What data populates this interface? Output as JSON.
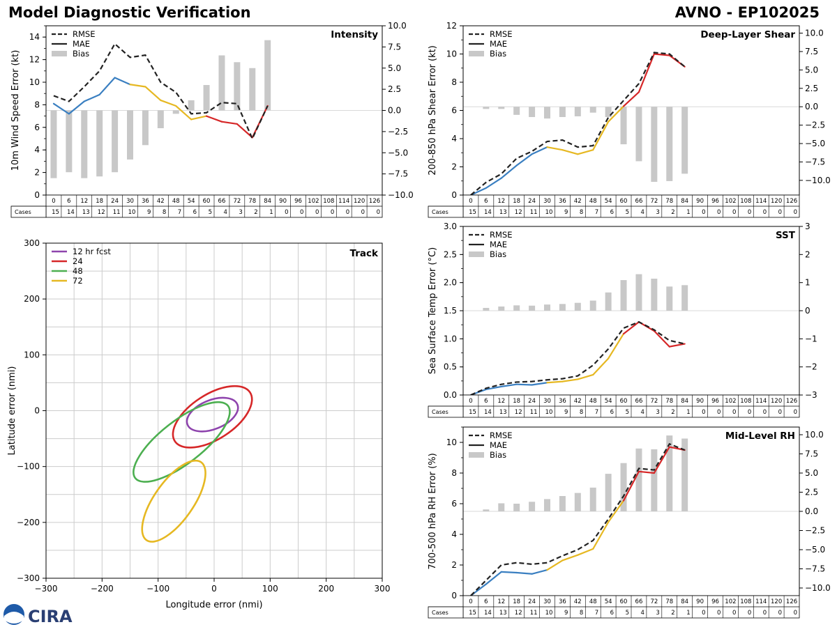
{
  "page": {
    "title": "Model Diagnostic Verification",
    "subtitle": "AVNO - EP102025",
    "logo_text": "CIRA"
  },
  "colors": {
    "rmse": "#222222",
    "early": "#3a7fc1",
    "mid": "#e6b822",
    "late": "#d62728",
    "bias": "#c8c8c8",
    "grid": "#cccccc"
  },
  "cases_label": "Cases",
  "chart_data": [
    {
      "id": "intensity",
      "type": "line",
      "title": "Intensity",
      "ylabel": "10m Wind Speed Error (kt)",
      "ylim": [
        0,
        15
      ],
      "yticks": [
        0,
        2,
        4,
        6,
        8,
        10,
        12,
        14
      ],
      "y2lim": [
        -10,
        10
      ],
      "y2ticks": [
        "−10.0",
        "−7.5",
        "−5.0",
        "−2.5",
        "0.0",
        "2.5",
        "5.0",
        "7.5",
        "10.0"
      ],
      "x": [
        0,
        6,
        12,
        18,
        24,
        30,
        36,
        42,
        48,
        54,
        60,
        66,
        72,
        78,
        84,
        90,
        96,
        102,
        108,
        114,
        120,
        126
      ],
      "cases": [
        15,
        14,
        13,
        12,
        11,
        10,
        9,
        8,
        7,
        6,
        5,
        4,
        3,
        2,
        1,
        0,
        0,
        0,
        0,
        0,
        0,
        0
      ],
      "rmse": [
        8.8,
        8.3,
        9.6,
        11.0,
        13.4,
        12.2,
        12.4,
        10.0,
        9.1,
        7.2,
        7.3,
        8.2,
        8.1,
        5.0,
        7.9
      ],
      "mae": [
        8.1,
        7.2,
        8.3,
        8.9,
        10.4,
        9.8,
        9.6,
        8.4,
        7.9,
        6.7,
        7.0,
        6.5,
        6.3,
        5.1,
        7.9
      ],
      "bias": [
        -8.0,
        -7.3,
        -8.0,
        -7.8,
        -7.3,
        -5.8,
        -4.1,
        -2.1,
        -0.4,
        1.2,
        3.0,
        6.5,
        5.7,
        5.0,
        8.3
      ],
      "legend": [
        "RMSE",
        "MAE",
        "Bias"
      ]
    },
    {
      "id": "shear",
      "type": "line",
      "title": "Deep-Layer Shear",
      "ylabel": "200-850 hPa Shear Error (kt)",
      "ylim": [
        0,
        12
      ],
      "yticks": [
        0,
        2,
        4,
        6,
        8,
        10,
        12
      ],
      "y2lim": [
        -12,
        11
      ],
      "y2ticks": [
        "−10.0",
        "−7.5",
        "−5.0",
        "−2.5",
        "0.0",
        "2.5",
        "5.0",
        "7.5",
        "10.0"
      ],
      "y2tickvals": [
        -10,
        -7.5,
        -5,
        -2.5,
        0,
        2.5,
        5,
        7.5,
        10
      ],
      "x": [
        0,
        6,
        12,
        18,
        24,
        30,
        36,
        42,
        48,
        54,
        60,
        66,
        72,
        78,
        84,
        90,
        96,
        102,
        108,
        114,
        120,
        126
      ],
      "cases": [
        15,
        14,
        13,
        12,
        11,
        10,
        9,
        8,
        7,
        6,
        5,
        4,
        3,
        2,
        1,
        0,
        0,
        0,
        0,
        0,
        0,
        0
      ],
      "rmse": [
        0.0,
        0.9,
        1.5,
        2.6,
        3.1,
        3.8,
        3.9,
        3.4,
        3.5,
        5.5,
        6.7,
        7.9,
        10.1,
        10.0,
        9.1
      ],
      "mae": [
        0.0,
        0.5,
        1.2,
        2.1,
        2.9,
        3.4,
        3.2,
        2.9,
        3.2,
        5.2,
        6.3,
        7.3,
        10.0,
        9.9,
        9.1
      ],
      "bias": [
        0.0,
        -0.3,
        -0.3,
        -1.1,
        -1.4,
        -1.6,
        -1.4,
        -1.3,
        -0.8,
        -1.4,
        -5.1,
        -7.4,
        -10.2,
        -10.1,
        -9.1
      ],
      "legend": [
        "RMSE",
        "MAE",
        "Bias"
      ]
    },
    {
      "id": "sst",
      "type": "line",
      "title": "SST",
      "ylabel": "Sea Surface Temp Error (°C)",
      "ylim": [
        0,
        3
      ],
      "yticks": [
        "0.0",
        "0.5",
        "1.0",
        "1.5",
        "2.0",
        "2.5",
        "3.0"
      ],
      "y2lim": [
        -3,
        3
      ],
      "y2ticks": [
        "−3",
        "−2",
        "−1",
        "0",
        "1",
        "2",
        "3"
      ],
      "x": [
        0,
        6,
        12,
        18,
        24,
        30,
        36,
        42,
        48,
        54,
        60,
        66,
        72,
        78,
        84,
        90,
        96,
        102,
        108,
        114,
        120,
        126
      ],
      "cases": [
        15,
        14,
        13,
        12,
        11,
        10,
        9,
        8,
        7,
        6,
        5,
        4,
        3,
        2,
        1,
        0,
        0,
        0,
        0,
        0,
        0,
        0
      ],
      "rmse": [
        0.0,
        0.12,
        0.19,
        0.23,
        0.24,
        0.27,
        0.29,
        0.34,
        0.53,
        0.82,
        1.19,
        1.3,
        1.16,
        0.97,
        0.91
      ],
      "mae": [
        0.0,
        0.1,
        0.15,
        0.19,
        0.18,
        0.22,
        0.24,
        0.28,
        0.36,
        0.65,
        1.09,
        1.3,
        1.14,
        0.86,
        0.91
      ],
      "bias": [
        0.0,
        0.1,
        0.15,
        0.19,
        0.18,
        0.22,
        0.24,
        0.28,
        0.36,
        0.65,
        1.09,
        1.3,
        1.14,
        0.86,
        0.91
      ],
      "legend": [
        "RMSE",
        "MAE",
        "Bias"
      ]
    },
    {
      "id": "rh",
      "type": "line",
      "title": "Mid-Level RH",
      "ylabel": "700-500 hPa RH Error (%)",
      "ylim": [
        0,
        11
      ],
      "yticks": [
        0,
        2,
        4,
        6,
        8,
        10
      ],
      "y2lim": [
        -11,
        11
      ],
      "y2ticks": [
        "−10.0",
        "−7.5",
        "−5.0",
        "−2.5",
        "0.0",
        "2.5",
        "5.0",
        "7.5",
        "10.0"
      ],
      "y2tickvals": [
        -10,
        -7.5,
        -5,
        -2.5,
        0,
        2.5,
        5,
        7.5,
        10
      ],
      "x": [
        0,
        6,
        12,
        18,
        24,
        30,
        36,
        42,
        48,
        54,
        60,
        66,
        72,
        78,
        84,
        90,
        96,
        102,
        108,
        114,
        120,
        126
      ],
      "cases": [
        15,
        14,
        13,
        12,
        11,
        10,
        9,
        8,
        7,
        6,
        5,
        4,
        3,
        2,
        1,
        0,
        0,
        0,
        0,
        0,
        0,
        0
      ],
      "rmse": [
        0.0,
        1.0,
        2.0,
        2.15,
        2.05,
        2.15,
        2.6,
        3.0,
        3.6,
        5.0,
        6.5,
        8.3,
        8.2,
        9.9,
        9.5
      ],
      "mae": [
        0.0,
        0.75,
        1.55,
        1.5,
        1.42,
        1.68,
        2.3,
        2.65,
        3.05,
        4.8,
        6.2,
        8.1,
        8.0,
        9.7,
        9.5
      ],
      "bias": [
        0.0,
        0.25,
        1.05,
        1.0,
        1.25,
        1.6,
        2.0,
        2.4,
        3.1,
        4.9,
        6.3,
        8.2,
        8.1,
        9.9,
        9.5
      ],
      "legend": [
        "RMSE",
        "MAE",
        "Bias"
      ]
    },
    {
      "id": "track",
      "type": "scatter",
      "title": "Track",
      "xlabel": "Longitude error (nmi)",
      "ylabel": "Latitude error (nmi)",
      "xlim": [
        -300,
        300
      ],
      "ylim": [
        -300,
        300
      ],
      "ticks": [
        "−300",
        "−200",
        "−100",
        "0",
        "100",
        "200",
        "300"
      ],
      "tickvals": [
        -300,
        -200,
        -100,
        0,
        100,
        200,
        300
      ],
      "legend": [
        "12 hr fcst",
        "24",
        "48",
        "72"
      ],
      "ellipses": [
        {
          "label": "12 hr fcst",
          "color": "#8e44ad",
          "cx": -3,
          "cy": -7,
          "a": 48,
          "b": 26,
          "angle": 22
        },
        {
          "label": "24",
          "color": "#d62728",
          "cx": -3,
          "cy": -11,
          "a": 80,
          "b": 40,
          "angle": 33
        },
        {
          "label": "48",
          "color": "#4caf50",
          "cx": -58,
          "cy": -56,
          "a": 105,
          "b": 38,
          "angle": 38
        },
        {
          "label": "72",
          "color": "#e6b822",
          "cx": -72,
          "cy": -162,
          "a": 85,
          "b": 35,
          "angle": 55
        }
      ]
    }
  ]
}
